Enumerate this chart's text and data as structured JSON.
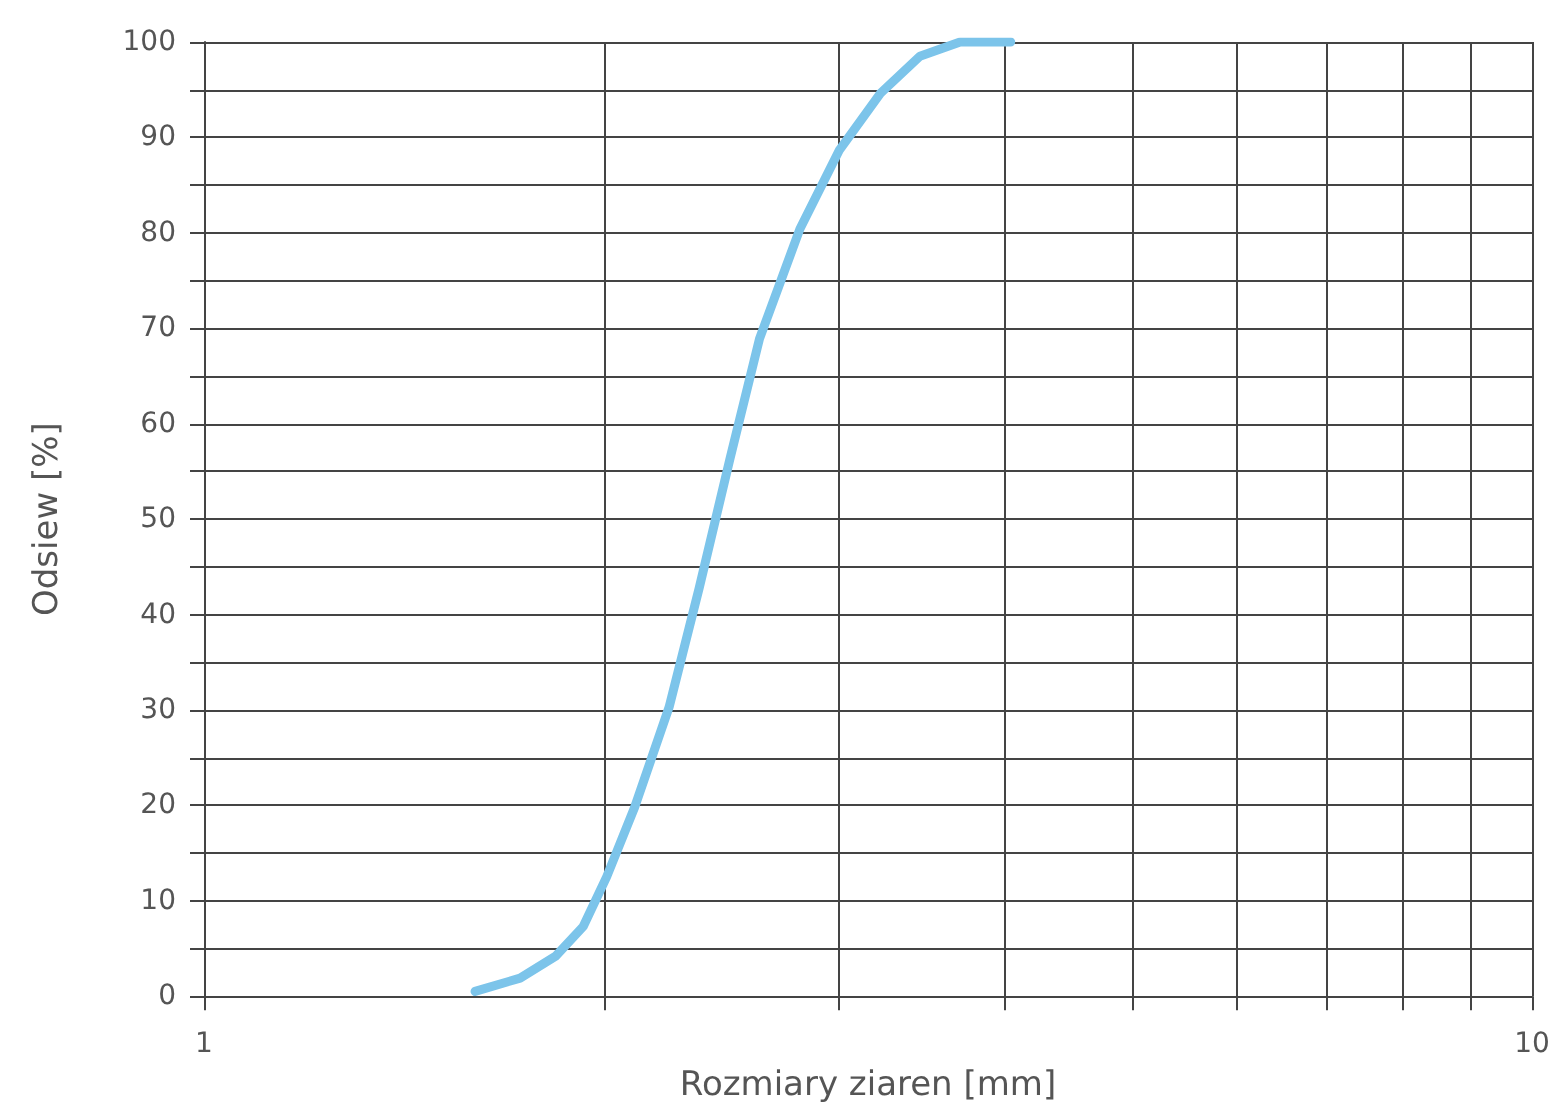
{
  "chart_data": {
    "type": "line",
    "xlabel": "Rozmiary ziaren [mm]",
    "ylabel": "Odsiew [%]",
    "log": "x",
    "x": [
      1.6,
      1.73,
      1.84,
      1.93,
      2.01,
      2.11,
      2.24,
      2.36,
      2.49,
      2.62,
      2.81,
      3.01,
      3.23,
      3.46,
      3.71,
      4.05
    ],
    "series": [
      {
        "color": "#7cc4ea",
        "values": [
          0.5,
          1.9,
          4.2,
          7.3,
          12.5,
          19.8,
          30.3,
          42.8,
          56.4,
          68.9,
          80.4,
          88.7,
          94.6,
          98.5,
          100,
          100
        ]
      }
    ],
    "xlim": [
      1,
      10
    ],
    "xticks": [
      1,
      {
        "value": 2,
        "label": null
      },
      {
        "value": 3,
        "label": null
      },
      {
        "value": 4,
        "label": null
      },
      {
        "value": 5,
        "label": null
      },
      {
        "value": 6,
        "label": null
      },
      {
        "value": 7,
        "label": null
      },
      {
        "value": 8,
        "label": null
      },
      {
        "value": 9,
        "label": null
      },
      10
    ],
    "ylim": [
      0,
      100
    ],
    "yticks": [
      0,
      {
        "value": 5,
        "label": null
      },
      10,
      {
        "value": 15,
        "label": null
      },
      20,
      {
        "value": 25,
        "label": null
      },
      30,
      {
        "value": 35,
        "label": null
      },
      40,
      {
        "value": 45,
        "label": null
      },
      50,
      {
        "value": 55,
        "label": null
      },
      60,
      {
        "value": 65,
        "label": null
      },
      70,
      {
        "value": 75,
        "label": null
      },
      80,
      {
        "value": 85,
        "label": null
      },
      90,
      {
        "value": 95,
        "label": null
      },
      100
    ],
    "grid": true,
    "marker": "none",
    "line_style": "solid"
  }
}
